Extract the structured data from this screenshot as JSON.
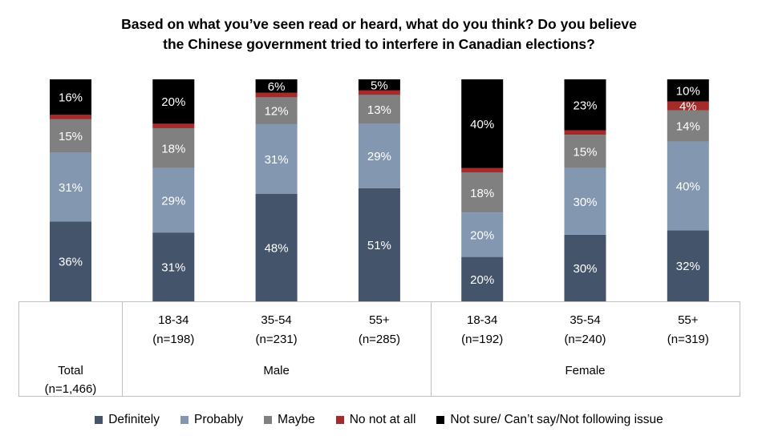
{
  "title_lines": [
    "Based on what you’ve seen read or heard, what do you think? Do you believe",
    "the Chinese government tried to interfere in Canadian elections?"
  ],
  "colors": {
    "Definitely": "#44546a",
    "Probably": "#8497b0",
    "Maybe": "#808080",
    "No not at all": "#a52a2a",
    "Not sure/ Can’t say/Not following issue": "#000000"
  },
  "chart_data": {
    "type": "bar",
    "stacked": true,
    "title": "Based on what you’ve seen read or heard, what do you think? Do you believe the Chinese government tried to interfere in Canadian elections?",
    "categories": [
      {
        "age": "",
        "n": "",
        "group": "Total",
        "group_n": "(n=1,466)"
      },
      {
        "age": "18-34",
        "n": "(n=198)",
        "group": "Male"
      },
      {
        "age": "35-54",
        "n": "(n=231)",
        "group": "Male"
      },
      {
        "age": "55+",
        "n": "(n=285)",
        "group": "Male"
      },
      {
        "age": "18-34",
        "n": "(n=192)",
        "group": "Female"
      },
      {
        "age": "35-54",
        "n": "(n=240)",
        "group": "Female"
      },
      {
        "age": "55+",
        "n": "(n=319)",
        "group": "Female"
      }
    ],
    "groups": [
      {
        "label": "Total",
        "sublabel": "(n=1,466)",
        "start": 0,
        "end": 0
      },
      {
        "label": "Male",
        "start": 1,
        "end": 3
      },
      {
        "label": "Female",
        "start": 4,
        "end": 6
      }
    ],
    "series": [
      {
        "name": "Definitely",
        "values": [
          36,
          31,
          48,
          51,
          20,
          30,
          32
        ],
        "labels": [
          "36%",
          "31%",
          "48%",
          "51%",
          "20%",
          "30%",
          "32%"
        ]
      },
      {
        "name": "Probably",
        "values": [
          31,
          29,
          31,
          29,
          20,
          30,
          40
        ],
        "labels": [
          "31%",
          "29%",
          "31%",
          "29%",
          "20%",
          "30%",
          "40%"
        ]
      },
      {
        "name": "Maybe",
        "values": [
          15,
          18,
          12,
          13,
          18,
          15,
          14
        ],
        "labels": [
          "15%",
          "18%",
          "12%",
          "13%",
          "18%",
          "15%",
          "14%"
        ]
      },
      {
        "name": "No not at all",
        "values": [
          2,
          2,
          2,
          2,
          2,
          2,
          4
        ],
        "labels": [
          "",
          "",
          "",
          "",
          "",
          "",
          "4%"
        ]
      },
      {
        "name": "Not sure/ Can’t say/Not following issue",
        "values": [
          16,
          20,
          6,
          5,
          40,
          23,
          10
        ],
        "labels": [
          "16%",
          "20%",
          "6%",
          "5%",
          "40%",
          "23%",
          "10%"
        ]
      }
    ],
    "ylim": [
      0,
      100
    ],
    "grid": false,
    "legend_position": "bottom"
  }
}
